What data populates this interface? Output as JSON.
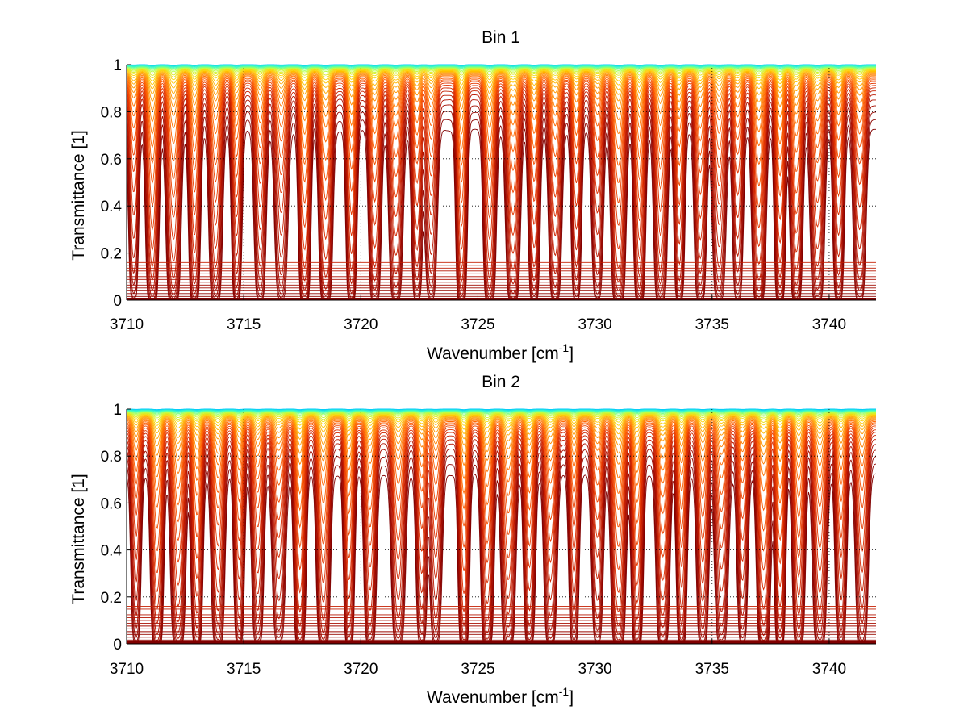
{
  "chart_data": [
    {
      "type": "line",
      "title": "Bin 1",
      "xlabel": "Wavenumber [cm",
      "xlabel_sup": "-1",
      "xlabel_end": "]",
      "ylabel": "Transmittance [1]",
      "xlim": [
        3710,
        3742
      ],
      "ylim": [
        0,
        1
      ],
      "grid": "dotted",
      "x_ticks": [
        "3710",
        "3715",
        "3720",
        "3725",
        "3730",
        "3735",
        "3740"
      ],
      "y_ticks": [
        "0",
        "0.2",
        "0.4",
        "0.6",
        "0.8",
        "1"
      ],
      "colormap": [
        "#00c8ff",
        "#40ffbf",
        "#c0ff40",
        "#ffd000",
        "#ff9000",
        "#ff6000",
        "#e03000",
        "#b01000",
        "#800000"
      ],
      "absorption_lines_cm-1": [
        3710.3,
        3711.1,
        3712.0,
        3712.9,
        3713.8,
        3714.7,
        3715.7,
        3716.6,
        3717.6,
        3718.5,
        3719.6,
        3720.6,
        3721.5,
        3722.4,
        3723.0,
        3724.3,
        3725.5,
        3726.5,
        3727.4,
        3728.3,
        3729.2,
        3730.1,
        3731.0,
        3731.9,
        3732.8,
        3733.6,
        3734.5,
        3735.3,
        3736.1,
        3737.0,
        3737.9,
        3738.6,
        3739.5,
        3740.4,
        3741.3
      ]
    },
    {
      "type": "line",
      "title": "Bin 2",
      "xlabel": "Wavenumber [cm",
      "xlabel_sup": "-1",
      "xlabel_end": "]",
      "ylabel": "Transmittance [1]",
      "xlim": [
        3710,
        3742
      ],
      "ylim": [
        0,
        1
      ],
      "grid": "dotted",
      "x_ticks": [
        "3710",
        "3715",
        "3720",
        "3725",
        "3730",
        "3735",
        "3740"
      ],
      "y_ticks": [
        "0",
        "0.2",
        "0.4",
        "0.6",
        "0.8",
        "1"
      ],
      "colormap": [
        "#00c8ff",
        "#40ffbf",
        "#c0ff40",
        "#ffd000",
        "#ff9000",
        "#ff6000",
        "#e03000",
        "#b01000",
        "#800000"
      ],
      "absorption_lines_cm-1": [
        3710.4,
        3711.3,
        3712.2,
        3713.0,
        3713.9,
        3714.8,
        3715.6,
        3716.5,
        3717.4,
        3718.4,
        3719.5,
        3720.4,
        3721.6,
        3722.6,
        3723.2,
        3724.4,
        3725.4,
        3726.3,
        3727.2,
        3728.1,
        3729.1,
        3730.1,
        3731.0,
        3731.8,
        3732.9,
        3733.7,
        3734.6,
        3735.4,
        3736.3,
        3737.2,
        3737.9,
        3738.7,
        3739.6,
        3740.5,
        3741.4
      ]
    }
  ]
}
